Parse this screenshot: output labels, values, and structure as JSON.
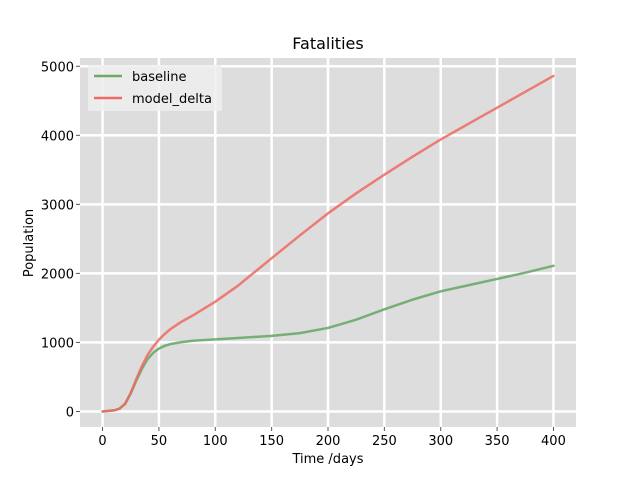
{
  "chart_data": {
    "type": "line",
    "title": "Fatalities",
    "xlabel": "Time /days",
    "ylabel": "Population",
    "xlim": [
      -20,
      420
    ],
    "ylim": [
      -225,
      5120
    ],
    "xticks": [
      0,
      50,
      100,
      150,
      200,
      250,
      300,
      350,
      400
    ],
    "yticks": [
      0,
      1000,
      2000,
      3000,
      4000,
      5000
    ],
    "grid": true,
    "legend_position": "top-left",
    "background": "#dddddd",
    "series": [
      {
        "name": "baseline",
        "color": "#6aaa6a",
        "x": [
          0,
          10,
          15,
          20,
          25,
          30,
          35,
          40,
          45,
          50,
          55,
          60,
          70,
          80,
          100,
          120,
          150,
          175,
          200,
          225,
          250,
          275,
          300,
          325,
          350,
          375,
          400
        ],
        "y": [
          0,
          15,
          40,
          110,
          260,
          450,
          620,
          760,
          850,
          910,
          950,
          975,
          1005,
          1025,
          1045,
          1065,
          1095,
          1135,
          1210,
          1330,
          1480,
          1620,
          1740,
          1830,
          1920,
          2010,
          2110
        ]
      },
      {
        "name": "model_delta",
        "color": "#ee6a62",
        "x": [
          0,
          10,
          15,
          20,
          25,
          30,
          35,
          40,
          45,
          50,
          55,
          60,
          70,
          80,
          100,
          120,
          150,
          175,
          200,
          225,
          250,
          275,
          300,
          325,
          350,
          375,
          400
        ],
        "y": [
          0,
          15,
          40,
          110,
          270,
          470,
          660,
          820,
          940,
          1040,
          1120,
          1190,
          1300,
          1390,
          1590,
          1820,
          2220,
          2550,
          2870,
          3160,
          3430,
          3690,
          3940,
          4170,
          4400,
          4630,
          4860
        ]
      }
    ]
  }
}
